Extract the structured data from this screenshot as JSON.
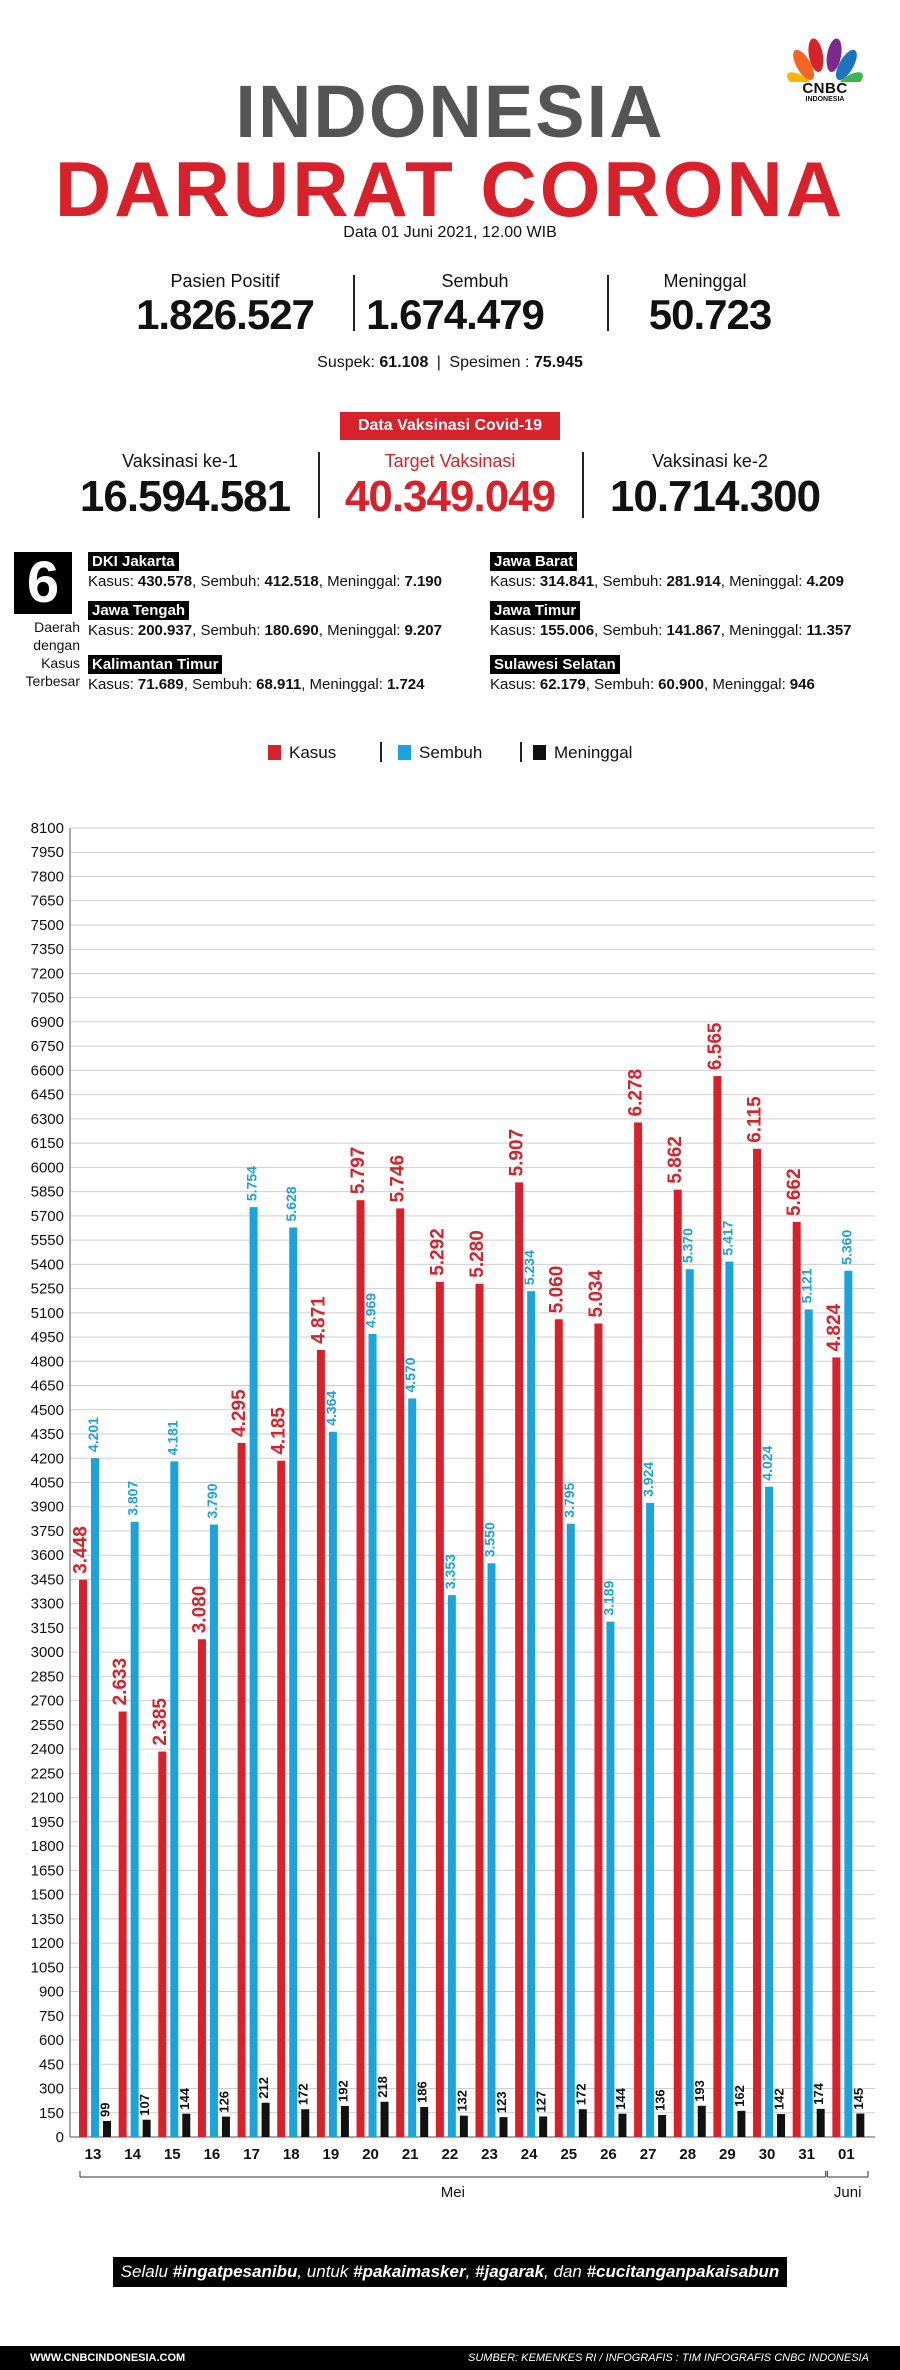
{
  "brand": {
    "logo_text": "CNBC",
    "logo_sub": "INDONESIA",
    "peacock_colors": [
      "#f7b500",
      "#f26522",
      "#d7222c",
      "#7a2a8c",
      "#1c75bc",
      "#39b54a"
    ]
  },
  "header": {
    "title_line1": "INDONESIA",
    "title_line2": "DARURAT CORONA",
    "datetime": "Data 01 Juni 2021, 12.00 WIB"
  },
  "stats": {
    "positif": {
      "label": "Pasien Positif",
      "value": "1.826.527"
    },
    "sembuh": {
      "label": "Sembuh",
      "value": "1.674.479"
    },
    "meninggal": {
      "label": "Meninggal",
      "value": "50.723"
    }
  },
  "suspek": {
    "label": "Suspek:",
    "value": "61.108",
    "sep": "|",
    "spesimen_label": "Spesimen :",
    "spesimen_value": "75.945"
  },
  "vaksinasi": {
    "badge": "Data Vaksinasi Covid-19",
    "dosis1": {
      "label": "Vaksinasi ke-1",
      "value": "16.594.581"
    },
    "target": {
      "label": "Target Vaksinasi",
      "value": "40.349.049"
    },
    "dosis2": {
      "label": "Vaksinasi ke-2",
      "value": "10.714.300"
    }
  },
  "regions": {
    "count": "6",
    "caption": [
      "Daerah",
      "dengan",
      "Kasus",
      "Terbesar"
    ],
    "items": [
      {
        "name": "DKI Jakarta",
        "kasus": "430.578",
        "sembuh": "412.518",
        "meninggal": "7.190"
      },
      {
        "name": "Jawa Barat",
        "kasus": "314.841",
        "sembuh": "281.914",
        "meninggal": "4.209"
      },
      {
        "name": "Jawa Tengah",
        "kasus": "200.937",
        "sembuh": "180.690",
        "meninggal": "9.207"
      },
      {
        "name": "Jawa Timur",
        "kasus": "155.006",
        "sembuh": "141.867",
        "meninggal": "11.357"
      },
      {
        "name": "Kalimantan Timur",
        "kasus": "71.689",
        "sembuh": "68.911",
        "meninggal": "1.724"
      },
      {
        "name": "Sulawesi Selatan",
        "kasus": "62.179",
        "sembuh": "60.900",
        "meninggal": "946"
      }
    ],
    "kasus_label": "Kasus:",
    "sembuh_label": "Sembuh:",
    "meninggal_label": "Meninggal:"
  },
  "legend": [
    {
      "name": "Kasus",
      "color": "#d7222c"
    },
    {
      "name": "Sembuh",
      "color": "#1ba3dc"
    },
    {
      "name": "Meninggal",
      "color": "#111111"
    }
  ],
  "chart_data": {
    "type": "bar",
    "categories": [
      "13",
      "14",
      "15",
      "16",
      "17",
      "18",
      "19",
      "20",
      "21",
      "22",
      "23",
      "24",
      "25",
      "26",
      "27",
      "28",
      "29",
      "30",
      "31",
      "01"
    ],
    "month_labels": [
      "Mei",
      "Juni"
    ],
    "ylim": [
      0,
      8100
    ],
    "yticks": [
      0,
      150,
      300,
      450,
      600,
      750,
      900,
      1050,
      1200,
      1350,
      1500,
      1650,
      1800,
      1950,
      2100,
      2250,
      2400,
      2550,
      2700,
      2850,
      3000,
      3150,
      3300,
      3450,
      3600,
      3750,
      3900,
      4050,
      4200,
      4350,
      4500,
      4650,
      4800,
      4950,
      5100,
      5250,
      5400,
      5550,
      5700,
      5850,
      6000,
      6150,
      6300,
      6450,
      6600,
      6750,
      6900,
      7050,
      7200,
      7350,
      7500,
      7650,
      7800,
      7950,
      8100
    ],
    "grid": true,
    "series": [
      {
        "name": "Kasus",
        "color": "#d7222c",
        "values": [
          3448,
          2633,
          2385,
          3080,
          4295,
          4185,
          4871,
          5797,
          5746,
          5292,
          5280,
          5907,
          5060,
          5034,
          6278,
          5862,
          6565,
          6115,
          5662,
          4824
        ],
        "labels": [
          "3.448",
          "2.633",
          "2.385",
          "3.080",
          "4.295",
          "4.185",
          "4.871",
          "5.797",
          "5.746",
          "5.292",
          "5.280",
          "5.907",
          "5.060",
          "5.034",
          "6.278",
          "5.862",
          "6.565",
          "6.115",
          "5.662",
          "4.824"
        ]
      },
      {
        "name": "Sembuh",
        "color": "#1ba3dc",
        "values": [
          4201,
          3807,
          4181,
          3790,
          5754,
          5628,
          4364,
          4969,
          4570,
          3353,
          3550,
          5234,
          3795,
          3189,
          3924,
          5370,
          5417,
          4024,
          5121,
          5360
        ],
        "labels": [
          "4.201",
          "3.807",
          "4.181",
          "3.790",
          "5.754",
          "5.628",
          "4.364",
          "4.969",
          "4.570",
          "3.353",
          "3.550",
          "5.234",
          "3.795",
          "3.189",
          "3.924",
          "5.370",
          "5.417",
          "4.024",
          "5.121",
          "5.360"
        ]
      },
      {
        "name": "Meninggal",
        "color": "#111111",
        "values": [
          99,
          107,
          144,
          126,
          212,
          172,
          192,
          218,
          186,
          132,
          123,
          127,
          172,
          144,
          136,
          193,
          162,
          142,
          174,
          145
        ],
        "labels": [
          "99",
          "107",
          "144",
          "126",
          "212",
          "172",
          "192",
          "218",
          "186",
          "132",
          "123",
          "127",
          "172",
          "144",
          "136",
          "193",
          "162",
          "142",
          "174",
          "145"
        ]
      }
    ]
  },
  "footer": {
    "slogan_parts": [
      "Selalu ",
      "#ingatpesanibu",
      ", untuk ",
      "#pakaimasker",
      ", ",
      "#jagarak",
      ", dan ",
      "#cucitanganpakaisabun"
    ],
    "website": "WWW.CNBCINDONESIA.COM",
    "source": "SUMBER: KEMENKES RI / INFOGRAFIS : TIM INFOGRAFIS CNBC INDONESIA"
  }
}
